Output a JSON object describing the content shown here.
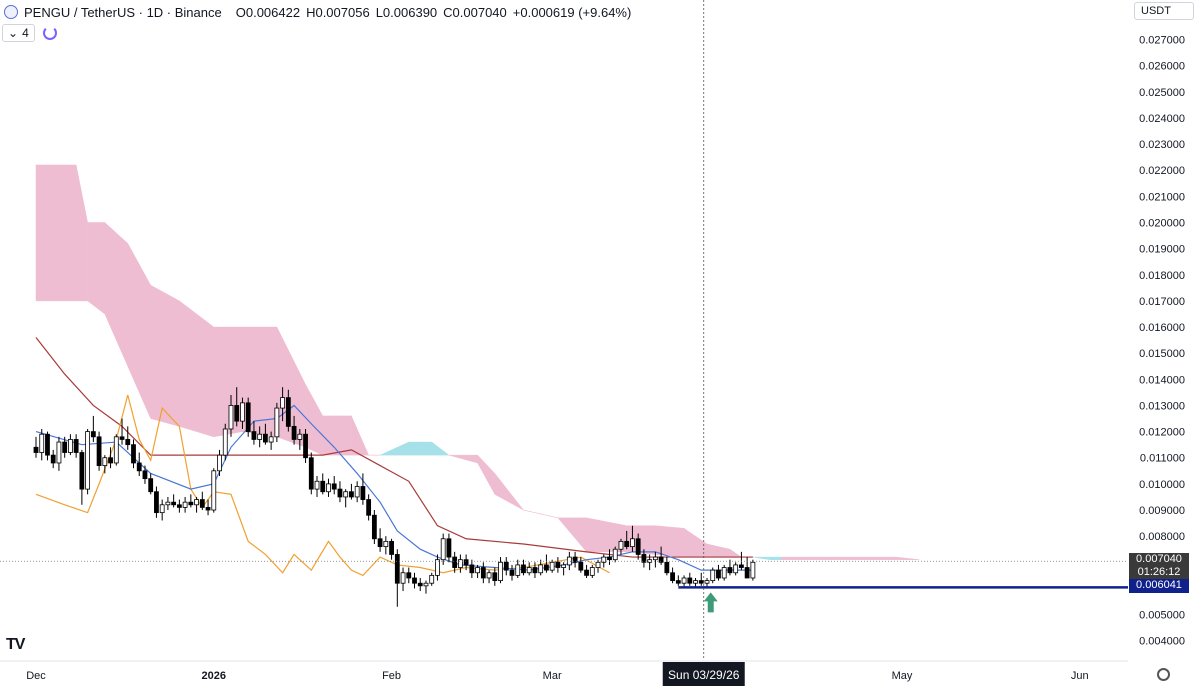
{
  "header": {
    "symbol": "PENGU / TetherUS · 1D · Binance",
    "open": "O0.006422",
    "high": "H0.007056",
    "low": "L0.006390",
    "close": "C0.007040",
    "change": "+0.000619 (+9.64%)",
    "indicator_count": "4",
    "currency": "USDT"
  },
  "axis": {
    "y_ticks": [
      "0.027000",
      "0.026000",
      "0.025000",
      "0.024000",
      "0.023000",
      "0.022000",
      "0.021000",
      "0.020000",
      "0.019000",
      "0.018000",
      "0.017000",
      "0.016000",
      "0.015000",
      "0.014000",
      "0.013000",
      "0.012000",
      "0.011000",
      "0.010000",
      "0.009000",
      "0.008000",
      "0.005000",
      "0.004000"
    ],
    "x_ticks": [
      {
        "label": "Dec",
        "day": 0
      },
      {
        "label": "2026",
        "day": 31,
        "bold": true
      },
      {
        "label": "Feb",
        "day": 62
      },
      {
        "label": "Mar",
        "day": 90
      },
      {
        "label": "May",
        "day": 151
      },
      {
        "label": "Jun",
        "day": 182
      }
    ],
    "crosshair_label": "Sun 03/29/26"
  },
  "price_tags": {
    "last": "0.007040",
    "countdown": "01:26:12",
    "level": "0.006041"
  },
  "colors": {
    "up": "#ffffff",
    "down": "#000000",
    "kumo_bear": "#efbdd1",
    "kumo_bull": "#a6e1ea",
    "tenkan": "#4a77d6",
    "kijun": "#a83a3a",
    "chikou": "#f0a030",
    "level": "#10218b",
    "arrow": "#3e9b7a"
  },
  "chart_data": {
    "type": "candlestick",
    "x_unit": "days since Dec 1 2025",
    "ylim": [
      0.0035,
      0.0279
    ],
    "horizontal_level": 0.006041,
    "candles": [
      [
        0,
        0.0114,
        0.0118,
        0.011,
        0.0112
      ],
      [
        1,
        0.0112,
        0.0121,
        0.0109,
        0.0119
      ],
      [
        2,
        0.0119,
        0.012,
        0.0109,
        0.0111
      ],
      [
        3,
        0.0111,
        0.0113,
        0.0106,
        0.0108
      ],
      [
        4,
        0.0108,
        0.0118,
        0.0105,
        0.0116
      ],
      [
        5,
        0.0116,
        0.0118,
        0.011,
        0.0112
      ],
      [
        6,
        0.0112,
        0.0119,
        0.0111,
        0.0117
      ],
      [
        7,
        0.0117,
        0.0119,
        0.011,
        0.0112
      ],
      [
        8,
        0.0112,
        0.0113,
        0.0092,
        0.0098
      ],
      [
        9,
        0.0098,
        0.0121,
        0.0096,
        0.012
      ],
      [
        10,
        0.012,
        0.0126,
        0.0116,
        0.0118
      ],
      [
        11,
        0.0118,
        0.012,
        0.0105,
        0.0107
      ],
      [
        12,
        0.0107,
        0.0111,
        0.0104,
        0.011
      ],
      [
        13,
        0.011,
        0.0114,
        0.0106,
        0.0108
      ],
      [
        14,
        0.0108,
        0.0119,
        0.0107,
        0.0118
      ],
      [
        15,
        0.0118,
        0.0125,
        0.0115,
        0.0117
      ],
      [
        16,
        0.0117,
        0.0122,
        0.0113,
        0.0115
      ],
      [
        17,
        0.0115,
        0.0117,
        0.0106,
        0.0108
      ],
      [
        18,
        0.0108,
        0.0112,
        0.0103,
        0.0105
      ],
      [
        19,
        0.0105,
        0.0107,
        0.01,
        0.0102
      ],
      [
        20,
        0.0102,
        0.0104,
        0.0096,
        0.0097
      ],
      [
        21,
        0.0097,
        0.0099,
        0.0087,
        0.0089
      ],
      [
        22,
        0.0089,
        0.0094,
        0.0086,
        0.0092
      ],
      [
        23,
        0.0092,
        0.0095,
        0.009,
        0.0093
      ],
      [
        24,
        0.0093,
        0.0096,
        0.0091,
        0.0092
      ],
      [
        25,
        0.0092,
        0.0094,
        0.0089,
        0.0091
      ],
      [
        26,
        0.0091,
        0.0095,
        0.0089,
        0.0093
      ],
      [
        27,
        0.0093,
        0.0096,
        0.0091,
        0.0092
      ],
      [
        28,
        0.0092,
        0.0095,
        0.0089,
        0.0094
      ],
      [
        29,
        0.0094,
        0.0097,
        0.009,
        0.0091
      ],
      [
        30,
        0.0091,
        0.0094,
        0.0088,
        0.009
      ],
      [
        31,
        0.009,
        0.0106,
        0.0089,
        0.0105
      ],
      [
        32,
        0.0105,
        0.0113,
        0.0103,
        0.0111
      ],
      [
        33,
        0.0111,
        0.0123,
        0.0109,
        0.0121
      ],
      [
        34,
        0.0121,
        0.0134,
        0.0118,
        0.013
      ],
      [
        35,
        0.013,
        0.0137,
        0.0122,
        0.0124
      ],
      [
        36,
        0.0124,
        0.0133,
        0.0121,
        0.0131
      ],
      [
        37,
        0.0131,
        0.0133,
        0.0118,
        0.012
      ],
      [
        38,
        0.012,
        0.0124,
        0.0115,
        0.0117
      ],
      [
        39,
        0.0117,
        0.0122,
        0.0114,
        0.0119
      ],
      [
        40,
        0.0119,
        0.0123,
        0.0115,
        0.0116
      ],
      [
        41,
        0.0116,
        0.012,
        0.0113,
        0.0118
      ],
      [
        42,
        0.0118,
        0.0131,
        0.0116,
        0.0129
      ],
      [
        43,
        0.0129,
        0.0137,
        0.0124,
        0.0133
      ],
      [
        44,
        0.0133,
        0.0136,
        0.012,
        0.0122
      ],
      [
        45,
        0.0122,
        0.0126,
        0.0115,
        0.0117
      ],
      [
        46,
        0.0117,
        0.0121,
        0.0113,
        0.0119
      ],
      [
        47,
        0.0119,
        0.0121,
        0.0108,
        0.011
      ],
      [
        48,
        0.011,
        0.0112,
        0.0096,
        0.0098
      ],
      [
        49,
        0.0098,
        0.0103,
        0.0095,
        0.0101
      ],
      [
        50,
        0.0101,
        0.0104,
        0.0096,
        0.0097
      ],
      [
        51,
        0.0097,
        0.0102,
        0.0095,
        0.01
      ],
      [
        52,
        0.01,
        0.0103,
        0.0096,
        0.0098
      ],
      [
        53,
        0.0098,
        0.0101,
        0.0093,
        0.0095
      ],
      [
        54,
        0.0095,
        0.0098,
        0.0091,
        0.0097
      ],
      [
        55,
        0.0097,
        0.01,
        0.0094,
        0.0095
      ],
      [
        56,
        0.0095,
        0.0101,
        0.0093,
        0.0099
      ],
      [
        57,
        0.0099,
        0.0104,
        0.0092,
        0.0094
      ],
      [
        58,
        0.0094,
        0.0096,
        0.0086,
        0.0088
      ],
      [
        59,
        0.0088,
        0.009,
        0.0077,
        0.0079
      ],
      [
        60,
        0.0079,
        0.0083,
        0.0074,
        0.0076
      ],
      [
        61,
        0.0076,
        0.008,
        0.0073,
        0.0078
      ],
      [
        62,
        0.0078,
        0.0079,
        0.0071,
        0.0073
      ],
      [
        63,
        0.0073,
        0.0075,
        0.0053,
        0.0062
      ],
      [
        64,
        0.0062,
        0.0068,
        0.0059,
        0.0066
      ],
      [
        65,
        0.0066,
        0.0068,
        0.0062,
        0.0064
      ],
      [
        66,
        0.0064,
        0.0066,
        0.006,
        0.0062
      ],
      [
        67,
        0.0062,
        0.0064,
        0.0059,
        0.0061
      ],
      [
        68,
        0.0061,
        0.0063,
        0.0058,
        0.0062
      ],
      [
        69,
        0.0062,
        0.0066,
        0.0061,
        0.0065
      ],
      [
        70,
        0.0065,
        0.0073,
        0.0063,
        0.0071
      ],
      [
        71,
        0.0071,
        0.0081,
        0.0069,
        0.0079
      ],
      [
        72,
        0.0079,
        0.0081,
        0.007,
        0.0072
      ],
      [
        73,
        0.0072,
        0.0074,
        0.0066,
        0.0068
      ],
      [
        74,
        0.0068,
        0.0073,
        0.0066,
        0.0071
      ],
      [
        75,
        0.0071,
        0.0073,
        0.0067,
        0.0069
      ],
      [
        76,
        0.0069,
        0.0071,
        0.0064,
        0.0066
      ],
      [
        77,
        0.0066,
        0.0069,
        0.0064,
        0.0068
      ],
      [
        78,
        0.0068,
        0.007,
        0.0062,
        0.0064
      ],
      [
        79,
        0.0064,
        0.0067,
        0.0062,
        0.0066
      ],
      [
        80,
        0.0066,
        0.0068,
        0.0061,
        0.0063
      ],
      [
        81,
        0.0063,
        0.0072,
        0.0062,
        0.007
      ],
      [
        82,
        0.007,
        0.0072,
        0.0065,
        0.0067
      ],
      [
        83,
        0.0067,
        0.0069,
        0.0063,
        0.0065
      ],
      [
        84,
        0.0065,
        0.0071,
        0.0064,
        0.0069
      ],
      [
        85,
        0.0069,
        0.0071,
        0.0065,
        0.0066
      ],
      [
        86,
        0.0066,
        0.007,
        0.0065,
        0.0068
      ],
      [
        87,
        0.0068,
        0.007,
        0.0064,
        0.0066
      ],
      [
        88,
        0.0066,
        0.0071,
        0.0065,
        0.0069
      ],
      [
        89,
        0.0069,
        0.0073,
        0.0066,
        0.0067
      ],
      [
        90,
        0.0067,
        0.0071,
        0.0066,
        0.007
      ],
      [
        91,
        0.007,
        0.0072,
        0.0066,
        0.0068
      ],
      [
        92,
        0.0068,
        0.007,
        0.0065,
        0.0069
      ],
      [
        93,
        0.0069,
        0.0074,
        0.0067,
        0.0072
      ],
      [
        94,
        0.0072,
        0.0074,
        0.0068,
        0.007
      ],
      [
        95,
        0.007,
        0.0072,
        0.0066,
        0.0067
      ],
      [
        96,
        0.0067,
        0.0069,
        0.0064,
        0.0065
      ],
      [
        97,
        0.0065,
        0.0069,
        0.0064,
        0.0068
      ],
      [
        98,
        0.0068,
        0.0071,
        0.0066,
        0.007
      ],
      [
        99,
        0.007,
        0.0073,
        0.0068,
        0.0072
      ],
      [
        100,
        0.0072,
        0.0075,
        0.0069,
        0.0071
      ],
      [
        101,
        0.0071,
        0.0076,
        0.007,
        0.0075
      ],
      [
        102,
        0.0075,
        0.0079,
        0.0073,
        0.0078
      ],
      [
        103,
        0.0078,
        0.0082,
        0.0075,
        0.0076
      ],
      [
        104,
        0.0076,
        0.0084,
        0.0074,
        0.0079
      ],
      [
        105,
        0.0079,
        0.0081,
        0.0071,
        0.0073
      ],
      [
        106,
        0.0073,
        0.0075,
        0.0068,
        0.007
      ],
      [
        107,
        0.007,
        0.0073,
        0.0067,
        0.0071
      ],
      [
        108,
        0.0071,
        0.0074,
        0.0068,
        0.0072
      ],
      [
        109,
        0.0072,
        0.0076,
        0.0069,
        0.007
      ],
      [
        110,
        0.007,
        0.0072,
        0.0065,
        0.0066
      ],
      [
        111,
        0.0066,
        0.0068,
        0.0062,
        0.0063
      ],
      [
        112,
        0.0063,
        0.0065,
        0.0061,
        0.0062
      ],
      [
        113,
        0.0062,
        0.0065,
        0.006,
        0.0064
      ],
      [
        114,
        0.0064,
        0.0066,
        0.0061,
        0.0062
      ],
      [
        115,
        0.0062,
        0.0064,
        0.006,
        0.0063
      ],
      [
        116,
        0.0063,
        0.0066,
        0.0061,
        0.0062
      ],
      [
        117,
        0.0062,
        0.0064,
        0.006,
        0.0063
      ],
      [
        118,
        0.0063,
        0.0068,
        0.0062,
        0.0067
      ],
      [
        119,
        0.0067,
        0.0069,
        0.0063,
        0.0064
      ],
      [
        120,
        0.0064,
        0.0069,
        0.0063,
        0.0068
      ],
      [
        121,
        0.0068,
        0.0071,
        0.0065,
        0.0066
      ],
      [
        122,
        0.0066,
        0.007,
        0.0065,
        0.0069
      ],
      [
        123,
        0.0069,
        0.0074,
        0.0067,
        0.0068
      ],
      [
        124,
        0.0068,
        0.0072,
        0.0064,
        0.0064
      ],
      [
        125,
        0.0064,
        0.0071,
        0.0063,
        0.007
      ]
    ],
    "tenkan": [
      [
        0,
        0.012
      ],
      [
        8,
        0.0115
      ],
      [
        14,
        0.0116
      ],
      [
        20,
        0.0104
      ],
      [
        27,
        0.0098
      ],
      [
        31,
        0.01
      ],
      [
        34,
        0.0114
      ],
      [
        38,
        0.0124
      ],
      [
        42,
        0.0125
      ],
      [
        45,
        0.013
      ],
      [
        48,
        0.0123
      ],
      [
        52,
        0.0114
      ],
      [
        56,
        0.0104
      ],
      [
        60,
        0.0093
      ],
      [
        63,
        0.0082
      ],
      [
        67,
        0.0075
      ],
      [
        70,
        0.0072
      ],
      [
        74,
        0.0069
      ],
      [
        80,
        0.0068
      ],
      [
        86,
        0.0067
      ],
      [
        92,
        0.0069
      ],
      [
        96,
        0.0071
      ],
      [
        100,
        0.0072
      ],
      [
        104,
        0.0074
      ],
      [
        108,
        0.0074
      ],
      [
        112,
        0.0071
      ],
      [
        116,
        0.0067
      ],
      [
        120,
        0.0067
      ],
      [
        125,
        0.0067
      ]
    ],
    "kijun": [
      [
        0,
        0.0156
      ],
      [
        5,
        0.0142
      ],
      [
        10,
        0.013
      ],
      [
        15,
        0.0122
      ],
      [
        20,
        0.0111
      ],
      [
        30,
        0.0111
      ],
      [
        40,
        0.0111
      ],
      [
        50,
        0.0111
      ],
      [
        55,
        0.0113
      ],
      [
        60,
        0.0107
      ],
      [
        65,
        0.0101
      ],
      [
        70,
        0.0084
      ],
      [
        75,
        0.0079
      ],
      [
        85,
        0.0077
      ],
      [
        96,
        0.0074
      ],
      [
        104,
        0.0072
      ],
      [
        112,
        0.0072
      ],
      [
        125,
        0.0072
      ]
    ],
    "chikou": [
      [
        0,
        0.0096
      ],
      [
        5,
        0.0092
      ],
      [
        9,
        0.0089
      ],
      [
        11,
        0.01
      ],
      [
        14,
        0.0117
      ],
      [
        16,
        0.0134
      ],
      [
        18,
        0.0117
      ],
      [
        20,
        0.0109
      ],
      [
        22,
        0.0129
      ],
      [
        25,
        0.0122
      ],
      [
        27,
        0.0098
      ],
      [
        29,
        0.0091
      ],
      [
        31,
        0.0097
      ],
      [
        34,
        0.0096
      ],
      [
        37,
        0.0078
      ],
      [
        40,
        0.0073
      ],
      [
        43,
        0.0066
      ],
      [
        45,
        0.0073
      ],
      [
        48,
        0.0067
      ],
      [
        51,
        0.0078
      ],
      [
        53,
        0.0072
      ],
      [
        55,
        0.0067
      ],
      [
        57,
        0.0065
      ],
      [
        60,
        0.0072
      ],
      [
        63,
        0.0069
      ],
      [
        67,
        0.0068
      ],
      [
        71,
        0.0066
      ],
      [
        75,
        0.0068
      ],
      [
        80,
        0.0067
      ],
      [
        85,
        0.0068
      ],
      [
        90,
        0.007
      ],
      [
        95,
        0.0072
      ],
      [
        100,
        0.0066
      ]
    ],
    "kumo": [
      [
        0,
        0.0222,
        0.017
      ],
      [
        7,
        0.0222,
        0.017
      ],
      [
        9,
        0.02,
        0.017
      ],
      [
        12,
        0.02,
        0.0165
      ],
      [
        16,
        0.0192,
        0.0145
      ],
      [
        20,
        0.0176,
        0.0125
      ],
      [
        25,
        0.017,
        0.0122
      ],
      [
        31,
        0.016,
        0.0118
      ],
      [
        36,
        0.016,
        0.012
      ],
      [
        42,
        0.016,
        0.0118
      ],
      [
        47,
        0.0138,
        0.0114
      ],
      [
        50,
        0.0126,
        0.0111
      ],
      [
        55,
        0.0126,
        0.0111
      ],
      [
        58,
        0.0111,
        0.0111
      ],
      [
        60,
        0.0111,
        0.0111
      ],
      [
        65,
        0.0116,
        0.0111
      ],
      [
        69,
        0.0116,
        0.0111
      ],
      [
        72,
        0.0111,
        0.0111
      ],
      [
        77,
        0.0111,
        0.0108
      ],
      [
        80,
        0.0104,
        0.0096
      ],
      [
        85,
        0.009,
        0.009
      ],
      [
        91,
        0.0087,
        0.0087
      ],
      [
        96,
        0.0087,
        0.0074
      ],
      [
        103,
        0.0084,
        0.0074
      ],
      [
        108,
        0.0084,
        0.0073
      ],
      [
        113,
        0.0083,
        0.0072
      ],
      [
        117,
        0.0077,
        0.0072
      ],
      [
        121,
        0.0075,
        0.0072
      ],
      [
        123,
        0.0072,
        0.0072
      ],
      [
        125,
        0.0072,
        0.0072
      ],
      [
        128,
        0.0072,
        0.0071
      ],
      [
        130,
        0.0072,
        0.0071
      ],
      [
        136,
        0.0072,
        0.0071
      ],
      [
        140,
        0.0072,
        0.0071
      ],
      [
        145,
        0.0072,
        0.0071
      ],
      [
        150,
        0.0072,
        0.0071
      ],
      [
        154,
        0.0071,
        0.0071
      ]
    ],
    "crosshair_day": 118
  }
}
